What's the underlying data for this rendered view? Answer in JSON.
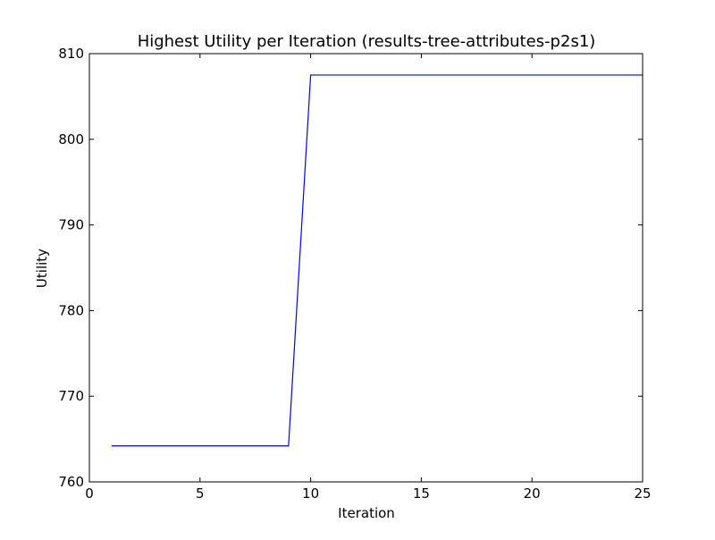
{
  "chart_data": {
    "type": "line",
    "title": "Highest Utility per Iteration (results-tree-attributes-p2s1)",
    "xlabel": "Iteration",
    "ylabel": "Utility",
    "xlim": [
      0,
      25
    ],
    "ylim": [
      760,
      810
    ],
    "xticks": [
      0,
      5,
      10,
      15,
      20,
      25
    ],
    "yticks": [
      760,
      770,
      780,
      790,
      800,
      810
    ],
    "grid": false,
    "series": [
      {
        "color": "#0000ff",
        "x": [
          1,
          2,
          3,
          4,
          5,
          6,
          7,
          8,
          9,
          10,
          11,
          12,
          13,
          14,
          15,
          16,
          17,
          18,
          19,
          20,
          21,
          22,
          23,
          24,
          25
        ],
        "y": [
          764.2,
          764.2,
          764.2,
          764.2,
          764.2,
          764.2,
          764.2,
          764.2,
          764.2,
          807.5,
          807.5,
          807.5,
          807.5,
          807.5,
          807.5,
          807.5,
          807.5,
          807.5,
          807.5,
          807.5,
          807.5,
          807.5,
          807.5,
          807.5,
          807.5
        ]
      }
    ]
  }
}
